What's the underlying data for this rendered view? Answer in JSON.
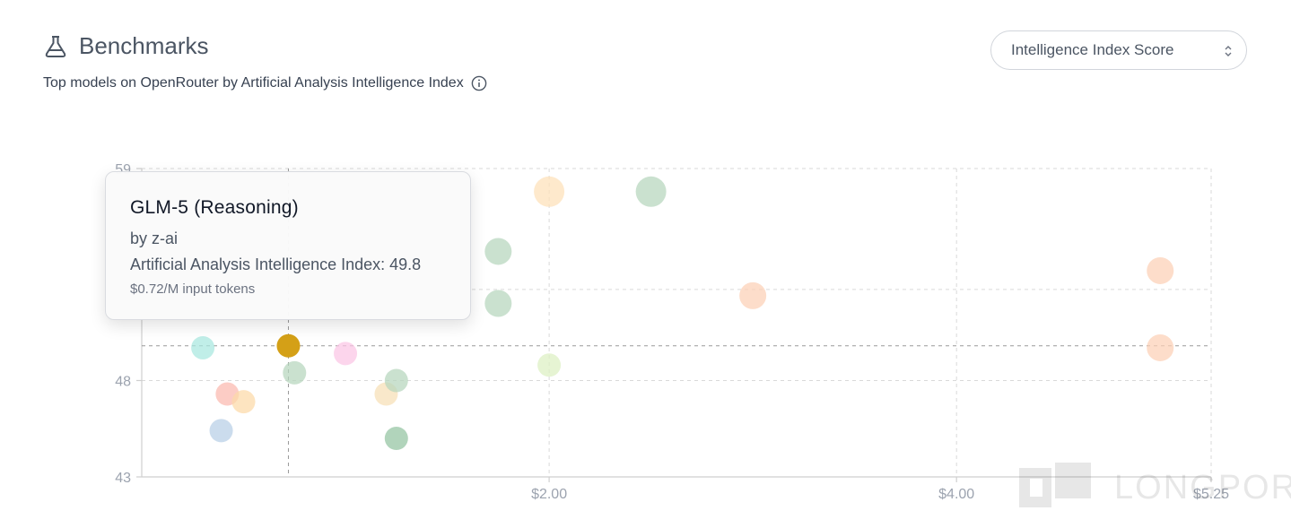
{
  "header": {
    "icon": "flask-icon",
    "title": "Benchmarks",
    "subtitle": "Top models on OpenRouter by Artificial Analysis Intelligence Index",
    "info_icon": "info-icon"
  },
  "metric_select": {
    "value": "Intelligence Index Score",
    "icon": "chevron-updown-icon"
  },
  "tooltip": {
    "name": "GLM-5 (Reasoning)",
    "author": "by z-ai",
    "score_line": "Artificial Analysis Intelligence Index: 49.8",
    "price_line": "$0.72/M input tokens"
  },
  "watermark": {
    "text": "LONGPORT"
  },
  "chart_data": {
    "type": "scatter",
    "title": "",
    "xlabel": "",
    "ylabel": "",
    "xlim": [
      0,
      5.25
    ],
    "ylim": [
      43,
      59
    ],
    "x_ticks": [
      {
        "value": 2.0,
        "label": "$2.00"
      },
      {
        "value": 4.0,
        "label": "$4.00"
      },
      {
        "value": 5.25,
        "label": "$5.25"
      }
    ],
    "y_ticks": [
      {
        "value": 43,
        "label": "43"
      },
      {
        "value": 48,
        "label": "48"
      },
      {
        "value": 59,
        "label": "59"
      }
    ],
    "grid": true,
    "crosshair": {
      "x": 0.72,
      "y": 49.8
    },
    "highlighted": {
      "x": 0.72,
      "y": 49.8,
      "color": "#d4a017"
    },
    "points": [
      {
        "x": 0.3,
        "y": 49.7,
        "color": "#a7e8df"
      },
      {
        "x": 0.42,
        "y": 47.3,
        "color": "#fbb9ae"
      },
      {
        "x": 0.5,
        "y": 46.9,
        "color": "#fcd9a8"
      },
      {
        "x": 0.39,
        "y": 45.4,
        "color": "#b7cfe6"
      },
      {
        "x": 0.72,
        "y": 49.8,
        "color": "#d4a017"
      },
      {
        "x": 0.75,
        "y": 48.4,
        "color": "#b5d6bd"
      },
      {
        "x": 1.0,
        "y": 49.4,
        "color": "#fbc5e4"
      },
      {
        "x": 1.2,
        "y": 47.3,
        "color": "#f7dfb5"
      },
      {
        "x": 1.25,
        "y": 48.0,
        "color": "#b5d6bd"
      },
      {
        "x": 1.25,
        "y": 45.0,
        "color": "#93c4a1"
      },
      {
        "x": 1.75,
        "y": 54.7,
        "color": "#b5d6bd"
      },
      {
        "x": 1.75,
        "y": 52.0,
        "color": "#b5d6bd"
      },
      {
        "x": 2.0,
        "y": 57.8,
        "color": "#fde1b8"
      },
      {
        "x": 2.0,
        "y": 48.8,
        "color": "#ddf0c2"
      },
      {
        "x": 2.5,
        "y": 57.8,
        "color": "#b5d6bd"
      },
      {
        "x": 3.0,
        "y": 52.4,
        "color": "#fcd0b6"
      },
      {
        "x": 5.0,
        "y": 53.7,
        "color": "#fcd0b6"
      },
      {
        "x": 5.0,
        "y": 49.7,
        "color": "#fcd0b6"
      }
    ]
  }
}
